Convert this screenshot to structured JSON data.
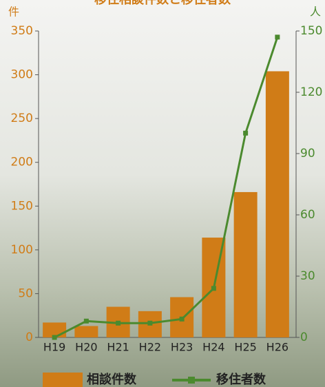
{
  "chart_data": {
    "type": "bar_line",
    "title": "移住相談件数と移住者数",
    "ylabel": "件",
    "y2label": "人",
    "categories": [
      "H19",
      "H20",
      "H21",
      "H22",
      "H23",
      "H24",
      "H25",
      "H26"
    ],
    "series": [
      {
        "name": "相談件数",
        "type": "bar",
        "color": "#d07c17",
        "values": [
          17,
          13,
          35,
          30,
          46,
          114,
          166,
          304
        ]
      },
      {
        "name": "移住者数",
        "type": "line",
        "axis": "y2",
        "color": "#4b8a2e",
        "values": [
          0,
          8,
          7,
          7,
          9,
          24,
          100,
          147
        ]
      }
    ],
    "ylim": [
      0,
      350
    ],
    "yticks": [
      0,
      50,
      100,
      150,
      200,
      250,
      300,
      350
    ],
    "y2lim": [
      0,
      150
    ],
    "y2ticks": [
      0,
      30,
      60,
      90,
      120,
      150
    ]
  }
}
